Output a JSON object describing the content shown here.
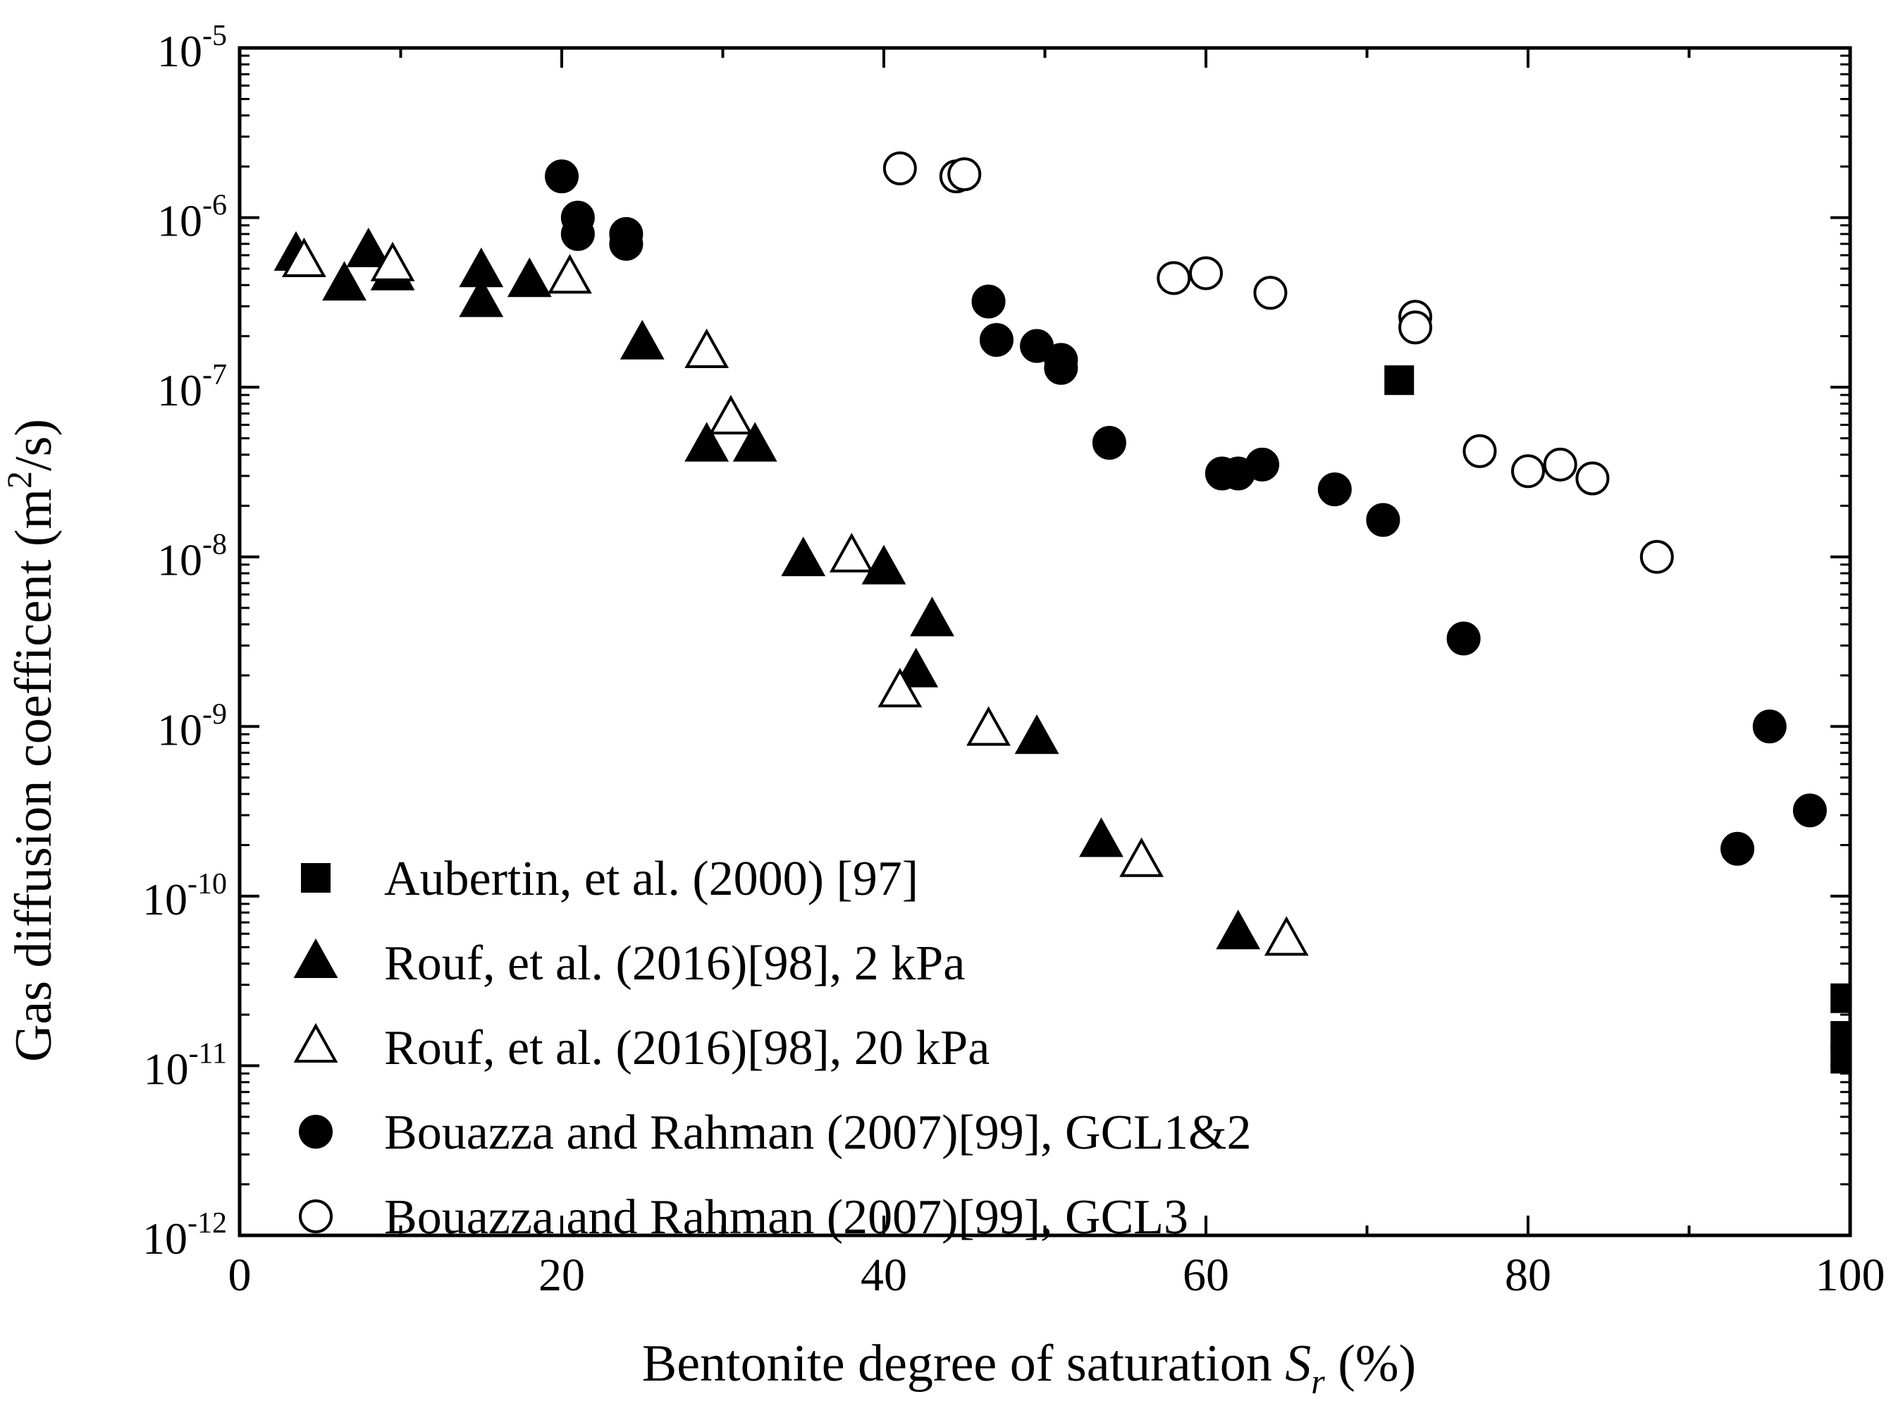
{
  "chart_data": {
    "type": "scatter",
    "title": "",
    "xlabel": "Bentonite degree of saturation",
    "xlabel_symbol": "S",
    "xlabel_subscript": "r",
    "xlabel_unit": "(%)",
    "ylabel": "Gas diffusion coefficent (m",
    "ylabel_sup": "2",
    "ylabel_tail": "/s)",
    "xlim": [
      0,
      100
    ],
    "ylim_exp": [
      -12,
      -5
    ],
    "yscale": "log",
    "x_ticks": [
      "0",
      "20",
      "40",
      "60",
      "80",
      "100"
    ],
    "y_ticks": [
      {
        "base": "10",
        "exp": "-12"
      },
      {
        "base": "10",
        "exp": "-11"
      },
      {
        "base": "10",
        "exp": "-10"
      },
      {
        "base": "10",
        "exp": "-9"
      },
      {
        "base": "10",
        "exp": "-8"
      },
      {
        "base": "10",
        "exp": "-7"
      },
      {
        "base": "10",
        "exp": "-6"
      },
      {
        "base": "10",
        "exp": "-5"
      }
    ],
    "grid": false,
    "legend_position": "bottom-left",
    "series": [
      {
        "name": "Aubertin, et al. (2000) [97]",
        "marker": "filled-square",
        "points": [
          [
            72,
            1.1e-07
          ],
          [
            99.7,
            2.5e-11
          ],
          [
            99.7,
            1.5e-11
          ],
          [
            99.7,
            1.1e-11
          ]
        ]
      },
      {
        "name": "Rouf, et al. (2016)[98], 2 kPa",
        "marker": "filled-triangle",
        "points": [
          [
            3.5,
            6e-07
          ],
          [
            6.5,
            4e-07
          ],
          [
            8,
            6.3e-07
          ],
          [
            9.5,
            4.6e-07
          ],
          [
            15,
            4.8e-07
          ],
          [
            15,
            3.2e-07
          ],
          [
            18,
            4.2e-07
          ],
          [
            25,
            1.8e-07
          ],
          [
            29,
            4.5e-08
          ],
          [
            32,
            4.5e-08
          ],
          [
            35,
            9.5e-09
          ],
          [
            40,
            8.5e-09
          ],
          [
            43,
            4.2e-09
          ],
          [
            42,
            2.1e-09
          ],
          [
            49.5,
            8.5e-10
          ],
          [
            53.5,
            2.1e-10
          ],
          [
            62,
            6e-11
          ]
        ]
      },
      {
        "name": "Rouf, et al. (2016)[98], 20 kPa",
        "marker": "open-triangle",
        "points": [
          [
            4,
            5.5e-07
          ],
          [
            9.5,
            5.2e-07
          ],
          [
            20.5,
            4.4e-07
          ],
          [
            29,
            1.6e-07
          ],
          [
            30.5,
            6.5e-08
          ],
          [
            38,
            1e-08
          ],
          [
            41,
            1.6e-09
          ],
          [
            46.5,
            9.5e-10
          ],
          [
            56,
            1.6e-10
          ],
          [
            65,
            5.5e-11
          ]
        ]
      },
      {
        "name": "Bouazza and Rahman (2007)[99], GCL1&2",
        "marker": "filled-circle",
        "points": [
          [
            20,
            1.75e-06
          ],
          [
            21,
            1e-06
          ],
          [
            21,
            8e-07
          ],
          [
            24,
            8e-07
          ],
          [
            24,
            7e-07
          ],
          [
            46.5,
            3.2e-07
          ],
          [
            47,
            1.9e-07
          ],
          [
            49.5,
            1.75e-07
          ],
          [
            51,
            1.45e-07
          ],
          [
            51,
            1.3e-07
          ],
          [
            54,
            4.7e-08
          ],
          [
            61,
            3.1e-08
          ],
          [
            62,
            3.1e-08
          ],
          [
            63.5,
            3.5e-08
          ],
          [
            68,
            2.5e-08
          ],
          [
            71,
            1.65e-08
          ],
          [
            76,
            3.3e-09
          ],
          [
            93,
            1.9e-10
          ],
          [
            95,
            1e-09
          ],
          [
            97.5,
            3.2e-10
          ]
        ]
      },
      {
        "name": "Bouazza and Rahman (2007)[99], GCL3",
        "marker": "open-circle",
        "points": [
          [
            41,
            1.95e-06
          ],
          [
            44.5,
            1.75e-06
          ],
          [
            45,
            1.8e-06
          ],
          [
            58,
            4.4e-07
          ],
          [
            60,
            4.7e-07
          ],
          [
            64,
            3.6e-07
          ],
          [
            73,
            2.6e-07
          ],
          [
            73,
            2.25e-07
          ],
          [
            77,
            4.2e-08
          ],
          [
            80,
            3.2e-08
          ],
          [
            82,
            3.5e-08
          ],
          [
            84,
            2.9e-08
          ],
          [
            88,
            1e-08
          ]
        ]
      }
    ]
  }
}
